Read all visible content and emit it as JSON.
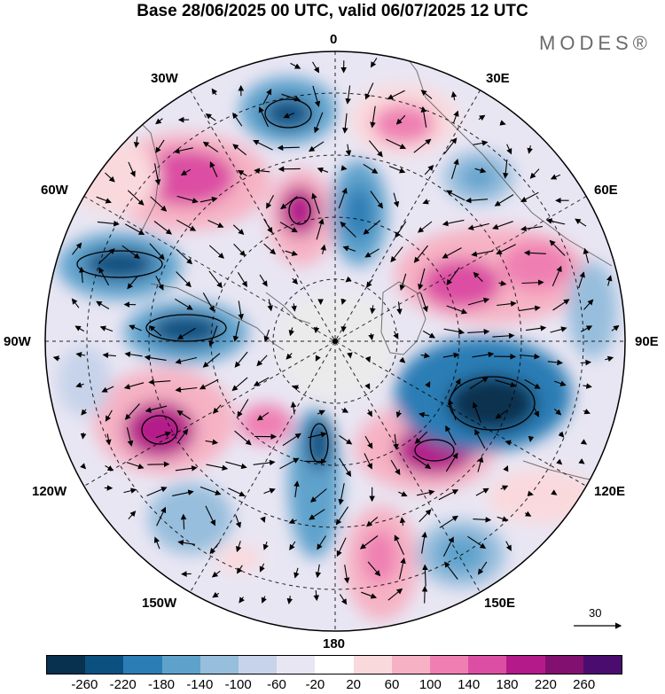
{
  "title": "Base 28/06/2025 00 UTC, valid 06/07/2025 12 UTC",
  "brand": "MODES®",
  "longitude_labels": {
    "n0": "0",
    "n30e": "30E",
    "n60e": "60E",
    "n90e": "90E",
    "n120e": "120E",
    "n150e": "150E",
    "n180": "180",
    "n150w": "150W",
    "n120w": "120W",
    "n90w": "90W",
    "n60w": "60W",
    "n30w": "30W"
  },
  "vector_scale_label": "30",
  "colorbar": {
    "colors": [
      "#08304f",
      "#0c5080",
      "#2a7db5",
      "#5ea2cc",
      "#97bedd",
      "#c6d3ea",
      "#e9e6f3",
      "#ffffff",
      "#fad9dc",
      "#f6b2c4",
      "#ef7fb2",
      "#dc4ea3",
      "#b41a8a",
      "#821070",
      "#4a0d6d"
    ],
    "tick_labels": [
      "-260",
      "-220",
      "-180",
      "-140",
      "-100",
      "-60",
      "-20",
      "20",
      "60",
      "100",
      "140",
      "180",
      "220",
      "260"
    ]
  }
}
